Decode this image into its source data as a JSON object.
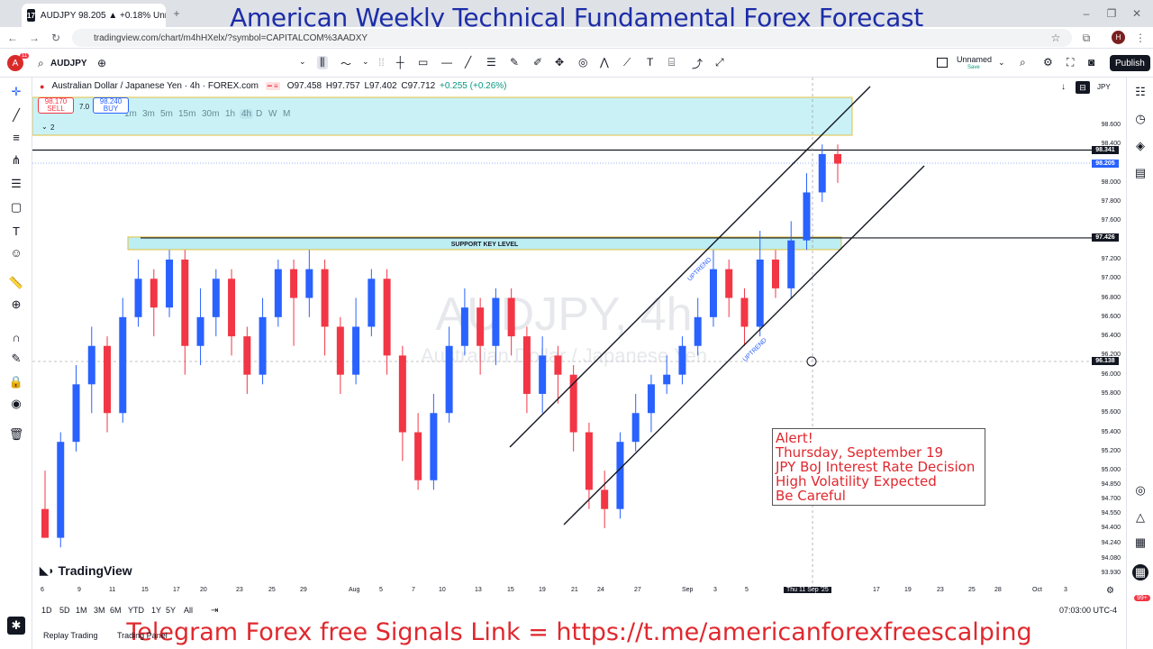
{
  "browser": {
    "tab_title": "AUDJPY 98.205 ▲ +0.18% Unn",
    "url": "tradingview.com/chart/m4hHXelx/?symbol=CAPITALCOM%3AADXY"
  },
  "banner_title": "American Weekly Technical Fundamental Forex Forecast",
  "toolbar": {
    "symbol": "AUDJPY",
    "avatar_letter": "A",
    "notif_count": "11",
    "timeframes": [
      "1m",
      "3m",
      "5m",
      "15m",
      "30m",
      "1h",
      "4h",
      "D",
      "W",
      "M"
    ],
    "active_timeframe": "4h",
    "layout_name": "Unnamed",
    "layout_status": "Save",
    "publish_label": "Publish",
    "profile_letter": "H"
  },
  "legend": {
    "title": "Australian Dollar / Japanese Yen · 4h · FOREX.com",
    "open": "O97.458",
    "high": "H97.757",
    "low": "L97.402",
    "close": "C97.712",
    "change": "+0.255 (+0.26%)",
    "sell_price": "98.170",
    "sell_label": "SELL",
    "spread": "7.0",
    "buy_price": "98.240",
    "buy_label": "BUY",
    "collapse_count": "2",
    "currency": "JPY"
  },
  "chart_data": {
    "type": "candlestick",
    "watermark": "AUDJPY, 4h",
    "watermark_sub": "Australian Dollar / Japanese Yen",
    "support_label": "SUPPORT KEY LEVEL",
    "support_level": 97.426,
    "resistance_level": 98.341,
    "current_price": 98.205,
    "crosshair_price": 96.138,
    "channel_labels": [
      "UPTREND",
      "UPTREND"
    ],
    "x_ticks": [
      "6",
      "9",
      "11",
      "15",
      "17",
      "20",
      "23",
      "25",
      "29",
      "Aug",
      "5",
      "7",
      "10",
      "13",
      "15",
      "19",
      "21",
      "24",
      "27",
      "Sep",
      "3",
      "5",
      "Thu 11 Sep '25",
      "17",
      "19",
      "23",
      "25",
      "28",
      "Oct",
      "3"
    ],
    "y_ticks": [
      "98.600",
      "98.400",
      "98.000",
      "97.800",
      "97.600",
      "97.200",
      "97.000",
      "96.800",
      "96.600",
      "96.400",
      "96.200",
      "96.000",
      "95.800",
      "95.600",
      "95.400",
      "95.200",
      "95.000",
      "94.850",
      "94.700",
      "94.550",
      "94.400",
      "94.240",
      "94.080",
      "93.930"
    ],
    "y_range": [
      93.93,
      98.75
    ],
    "candles": [
      [
        94.6,
        94.3,
        95.0,
        94.3
      ],
      [
        94.3,
        95.3,
        95.4,
        94.2
      ],
      [
        95.3,
        95.9,
        96.1,
        95.2
      ],
      [
        95.9,
        96.3,
        96.5,
        95.6
      ],
      [
        96.3,
        95.6,
        96.4,
        95.4
      ],
      [
        95.6,
        96.6,
        96.8,
        95.5
      ],
      [
        96.6,
        97.0,
        97.2,
        96.5
      ],
      [
        97.0,
        96.7,
        97.1,
        96.4
      ],
      [
        96.7,
        97.2,
        97.3,
        96.6
      ],
      [
        97.2,
        96.3,
        97.3,
        96.0
      ],
      [
        96.3,
        96.6,
        96.9,
        96.1
      ],
      [
        96.6,
        97.0,
        97.1,
        96.4
      ],
      [
        97.0,
        96.4,
        97.1,
        96.2
      ],
      [
        96.4,
        96.0,
        96.5,
        95.8
      ],
      [
        96.0,
        96.6,
        96.8,
        95.9
      ],
      [
        96.6,
        97.1,
        97.2,
        96.5
      ],
      [
        97.1,
        96.8,
        97.2,
        96.3
      ],
      [
        96.8,
        97.1,
        97.3,
        96.6
      ],
      [
        97.1,
        96.5,
        97.2,
        96.2
      ],
      [
        96.5,
        96.0,
        96.6,
        95.8
      ],
      [
        96.0,
        96.5,
        96.8,
        95.9
      ],
      [
        96.5,
        97.0,
        97.1,
        96.4
      ],
      [
        97.0,
        96.2,
        97.1,
        96.0
      ],
      [
        96.2,
        95.4,
        96.3,
        95.1
      ],
      [
        95.4,
        94.9,
        95.6,
        94.8
      ],
      [
        94.9,
        95.6,
        95.8,
        94.8
      ],
      [
        95.6,
        96.3,
        96.5,
        95.5
      ],
      [
        96.3,
        96.7,
        96.9,
        96.2
      ],
      [
        96.7,
        96.3,
        96.8,
        96.0
      ],
      [
        96.3,
        96.8,
        96.9,
        96.1
      ],
      [
        96.8,
        96.4,
        96.9,
        96.2
      ],
      [
        96.4,
        95.8,
        96.5,
        95.6
      ],
      [
        95.8,
        96.2,
        96.4,
        95.6
      ],
      [
        96.2,
        96.0,
        96.3,
        95.7
      ],
      [
        96.0,
        95.4,
        96.1,
        95.2
      ],
      [
        95.4,
        94.8,
        95.5,
        94.6
      ],
      [
        94.8,
        94.6,
        95.0,
        94.4
      ],
      [
        94.6,
        95.3,
        95.4,
        94.5
      ],
      [
        95.3,
        95.6,
        95.8,
        95.2
      ],
      [
        95.6,
        95.9,
        96.0,
        95.4
      ],
      [
        95.9,
        96.0,
        96.2,
        95.8
      ],
      [
        96.0,
        96.3,
        96.4,
        95.9
      ],
      [
        96.3,
        96.6,
        96.8,
        96.2
      ],
      [
        96.6,
        97.1,
        97.3,
        96.5
      ],
      [
        97.1,
        96.8,
        97.2,
        96.6
      ],
      [
        96.8,
        96.5,
        96.9,
        96.3
      ],
      [
        96.5,
        97.2,
        97.5,
        96.4
      ],
      [
        97.2,
        96.9,
        97.3,
        96.8
      ],
      [
        96.9,
        97.4,
        97.6,
        96.8
      ],
      [
        97.4,
        97.9,
        98.1,
        97.3
      ],
      [
        97.9,
        98.3,
        98.4,
        97.8
      ],
      [
        98.3,
        98.2,
        98.4,
        98.0
      ]
    ]
  },
  "alert": {
    "lines": [
      "Alert!",
      "Thursday, September 19",
      "JPY BoJ Interest Rate Decision",
      "High Volatility Expected",
      "Be Careful"
    ]
  },
  "bottom": {
    "ranges": [
      "1D",
      "5D",
      "1M",
      "3M",
      "6M",
      "YTD",
      "1Y",
      "5Y",
      "All"
    ],
    "time_readout": "07:03:00 UTC-4",
    "logo_text": "TradingView",
    "replay_label": "Replay Trading",
    "panel_label": "Trading Panel",
    "telegram_text": "Telegram Forex free Signals  Link =  https://t.me/americanforexfreescalping",
    "badge_count": "99+"
  },
  "colors": {
    "banner": "#1c2da8",
    "alert": "#e0282e",
    "up": "#2962ff",
    "down": "#f23645",
    "zone": "#9fe7ee"
  }
}
